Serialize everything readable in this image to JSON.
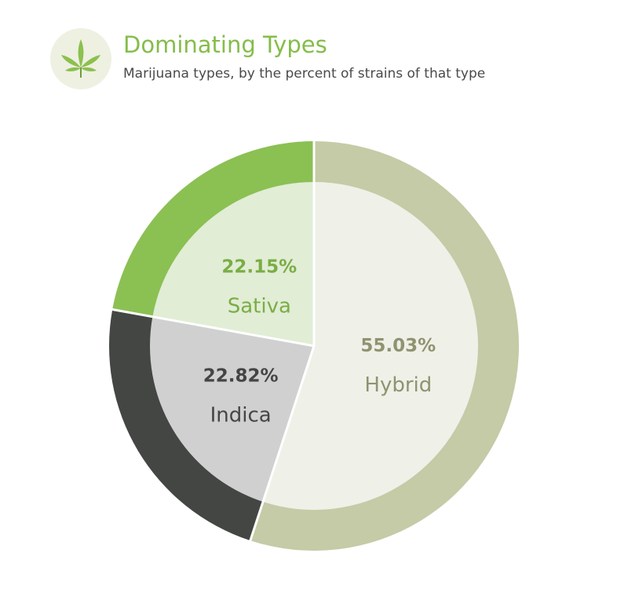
{
  "header": {
    "title": "Dominating Types",
    "subtitle": "Marijuana types, by the percent of strains of that type",
    "logo_icon": "cannabis-leaf-icon"
  },
  "colors": {
    "title": "#84bd4a",
    "logo_bg": "#eef0e2",
    "leaf": "#8cc04e"
  },
  "chart_data": {
    "type": "pie",
    "start_angle_deg": 0,
    "direction": "clockwise",
    "slices": [
      {
        "label": "Hybrid",
        "value": 55.03,
        "value_label": "55.03%",
        "outer_color": "#c4cba6",
        "inner_color": "#eff0e8",
        "text_color": "#8f936f"
      },
      {
        "label": "Indica",
        "value": 22.82,
        "value_label": "22.82%",
        "outer_color": "#434643",
        "inner_color": "#d0d0d0",
        "text_color": "#434643"
      },
      {
        "label": "Sativa",
        "value": 22.15,
        "value_label": "22.15%",
        "outer_color": "#8bc053",
        "inner_color": "#e1edd5",
        "text_color": "#7aad45"
      }
    ]
  }
}
